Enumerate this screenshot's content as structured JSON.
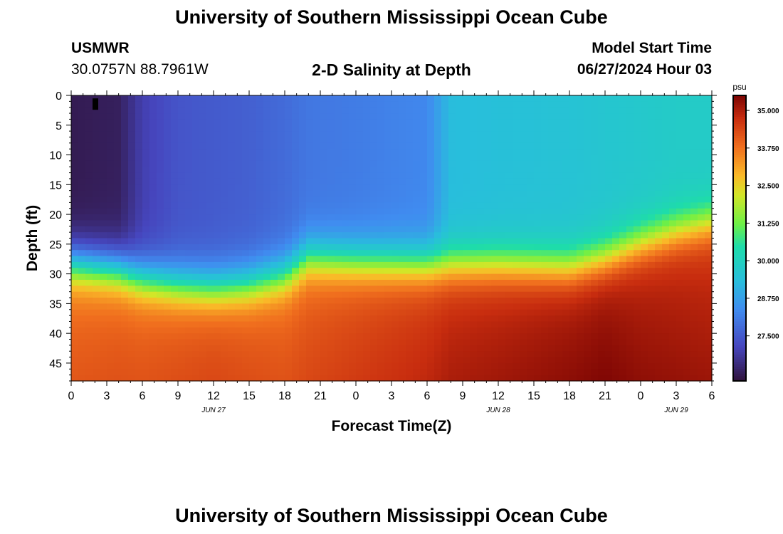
{
  "page": {
    "title": "University of Southern Mississippi Ocean Cube",
    "footer_title": "University of Southern Mississippi Ocean Cube",
    "station_id": "USMWR",
    "station_coords": "30.0757N  88.7961W",
    "model_start_label": "Model Start Time",
    "model_start_value": "06/27/2024 Hour 03"
  },
  "chart_data": {
    "type": "heatmap",
    "title": "2-D Salinity at Depth",
    "xlabel": "Forecast Time(Z)",
    "ylabel": "Depth (ft)",
    "x_range": [
      0,
      54
    ],
    "y_range": [
      0,
      48
    ],
    "x_ticks": [
      0,
      3,
      6,
      9,
      12,
      15,
      18,
      21,
      24,
      27,
      30,
      33,
      36,
      39,
      42,
      45,
      48,
      51,
      54
    ],
    "x_tick_labels": [
      "0",
      "3",
      "6",
      "9",
      "12",
      "15",
      "18",
      "21",
      "0",
      "3",
      "6",
      "9",
      "12",
      "15",
      "18",
      "21",
      "0",
      "3",
      "6"
    ],
    "y_ticks": [
      0,
      5,
      10,
      15,
      20,
      25,
      30,
      35,
      40,
      45
    ],
    "y_tick_labels": [
      "0",
      "5",
      "10",
      "15",
      "20",
      "25",
      "30",
      "35",
      "40",
      "45"
    ],
    "date_labels": [
      {
        "label": "JUN 27",
        "x": 12
      },
      {
        "label": "JUN 28",
        "x": 36
      },
      {
        "label": "JUN 29",
        "x": 51
      }
    ],
    "colorbar": {
      "unit": "psu",
      "range": [
        26.0,
        35.5
      ],
      "ticks": [
        35.0,
        33.75,
        32.5,
        31.25,
        30.0,
        28.75,
        27.5
      ],
      "tick_labels": [
        "35.000",
        "33.750",
        "32.500",
        "31.250",
        "30.000",
        "28.750",
        "27.500"
      ]
    },
    "profiles": [
      {
        "time": 0,
        "surface_salinity": 26.2,
        "halocline_depth": 28.5,
        "bottom_salinity": 33.9
      },
      {
        "time": 4,
        "surface_salinity": 26.3,
        "halocline_depth": 29.5,
        "bottom_salinity": 34.0
      },
      {
        "time": 6,
        "surface_salinity": 27.0,
        "halocline_depth": 31.0,
        "bottom_salinity": 34.0
      },
      {
        "time": 9,
        "surface_salinity": 27.4,
        "halocline_depth": 32.0,
        "bottom_salinity": 34.1
      },
      {
        "time": 12,
        "surface_salinity": 27.5,
        "halocline_depth": 32.5,
        "bottom_salinity": 34.2
      },
      {
        "time": 15,
        "surface_salinity": 27.6,
        "halocline_depth": 32.0,
        "bottom_salinity": 34.1
      },
      {
        "time": 18,
        "surface_salinity": 27.8,
        "halocline_depth": 30.5,
        "bottom_salinity": 34.0
      },
      {
        "time": 20,
        "surface_salinity": 28.0,
        "halocline_depth": 27.5,
        "bottom_salinity": 34.1
      },
      {
        "time": 24,
        "surface_salinity": 28.1,
        "halocline_depth": 28.0,
        "bottom_salinity": 34.3
      },
      {
        "time": 30,
        "surface_salinity": 28.3,
        "halocline_depth": 28.5,
        "bottom_salinity": 34.6
      },
      {
        "time": 32,
        "surface_salinity": 29.3,
        "halocline_depth": 28.5,
        "bottom_salinity": 34.8
      },
      {
        "time": 36,
        "surface_salinity": 29.4,
        "halocline_depth": 28.5,
        "bottom_salinity": 34.9
      },
      {
        "time": 42,
        "surface_salinity": 29.5,
        "halocline_depth": 29.0,
        "bottom_salinity": 35.1
      },
      {
        "time": 45,
        "surface_salinity": 29.6,
        "halocline_depth": 27.5,
        "bottom_salinity": 35.2
      },
      {
        "time": 48,
        "surface_salinity": 29.7,
        "halocline_depth": 25.0,
        "bottom_salinity": 35.0
      },
      {
        "time": 51,
        "surface_salinity": 29.8,
        "halocline_depth": 23.0,
        "bottom_salinity": 34.9
      },
      {
        "time": 54,
        "surface_salinity": 29.8,
        "halocline_depth": 21.5,
        "bottom_salinity": 34.8
      }
    ]
  }
}
